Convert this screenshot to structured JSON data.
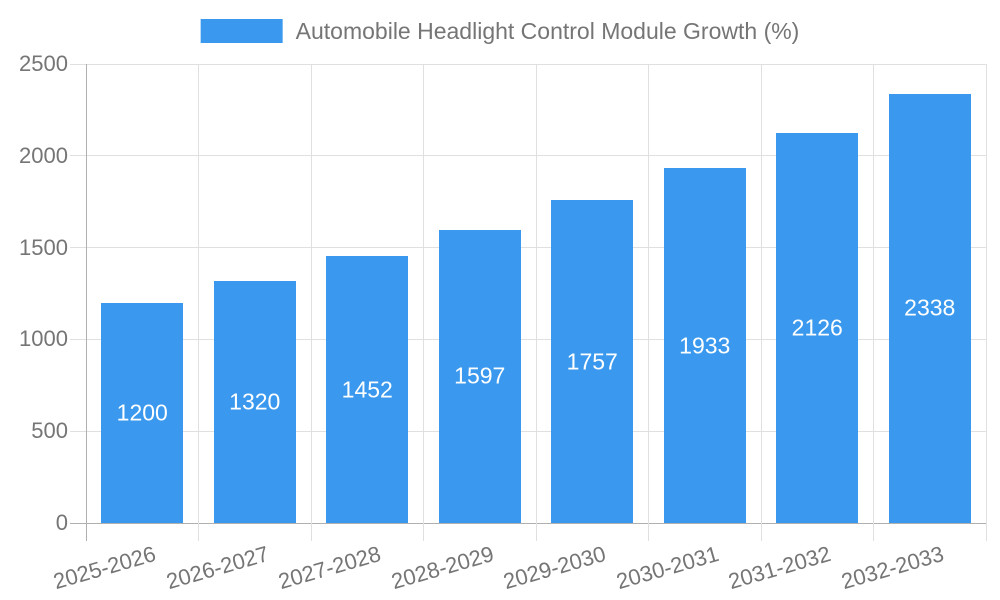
{
  "chart_data": {
    "type": "bar",
    "title": "Automobile Headlight Control Module Growth (%)",
    "legend_position": "top",
    "categories": [
      "2025-2026",
      "2026-2027",
      "2027-2028",
      "2028-2029",
      "2029-2030",
      "2030-2031",
      "2031-2032",
      "2032-2033"
    ],
    "series": [
      {
        "name": "Automobile Headlight Control Module Growth (%)",
        "values": [
          1200,
          1320,
          1452,
          1597,
          1757,
          1933,
          2126,
          2338
        ]
      }
    ],
    "value_labels_inside_bars": true,
    "xlabel": "",
    "ylabel": "",
    "ylim": [
      0,
      2500
    ],
    "yticks": [
      0,
      500,
      1000,
      1500,
      2000,
      2500
    ],
    "grid": true,
    "x_tick_label_rotation_deg": -16,
    "colors": {
      "bar": "#3a99ee",
      "grid_line": "#e0e0e0",
      "axis_line": "#b0b0b0",
      "tick_text": "#757575",
      "legend_text": "#757575",
      "value_label_text": "#ffffff",
      "background": "#ffffff"
    }
  }
}
